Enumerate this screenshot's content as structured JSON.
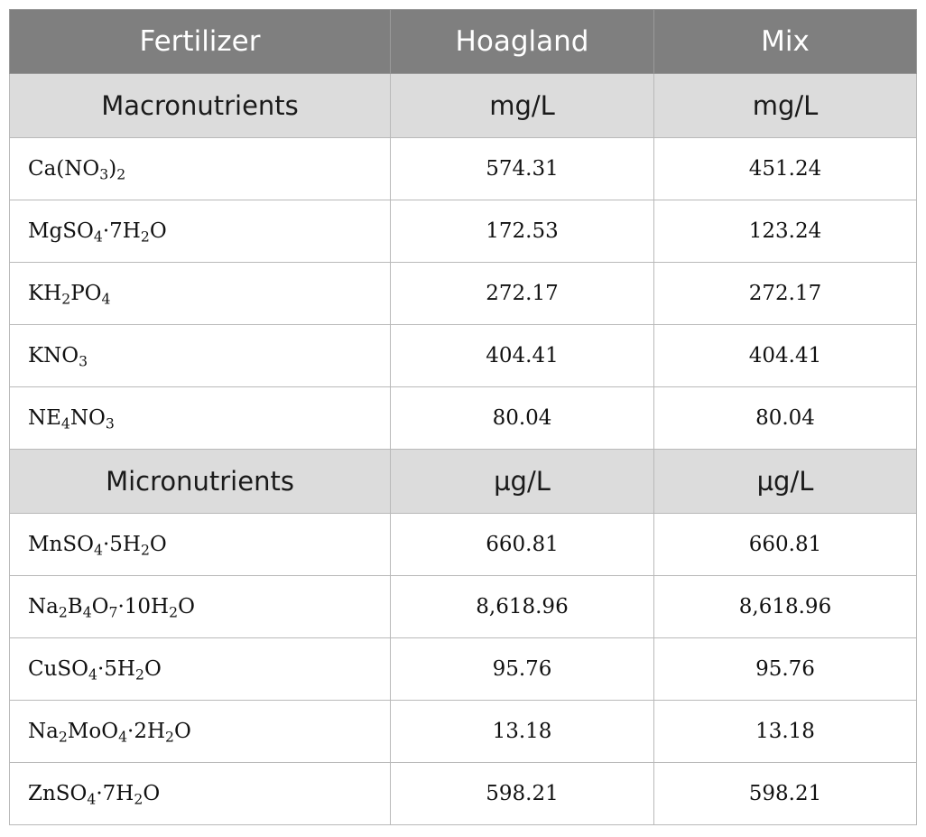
{
  "header": {
    "col1": "Fertilizer",
    "col2": "Hoagland",
    "col3": "Mix"
  },
  "sections": [
    {
      "title": "Macronutrients",
      "unit_hoagland": "mg/L",
      "unit_mix": "mg/L",
      "rows": [
        {
          "parts": [
            "Ca(NO",
            {
              "s": "3"
            },
            ")",
            {
              "s": "2"
            }
          ],
          "hoagland": "574.31",
          "mix": "451.24"
        },
        {
          "parts": [
            "MgSO",
            {
              "s": "4"
            },
            "·7H",
            {
              "s": "2"
            },
            "O"
          ],
          "hoagland": "172.53",
          "mix": "123.24"
        },
        {
          "parts": [
            "KH",
            {
              "s": "2"
            },
            "PO",
            {
              "s": "4"
            }
          ],
          "hoagland": "272.17",
          "mix": "272.17"
        },
        {
          "parts": [
            "KNO",
            {
              "s": "3"
            }
          ],
          "hoagland": "404.41",
          "mix": "404.41"
        },
        {
          "parts": [
            "NE",
            {
              "s": "4"
            },
            "NO",
            {
              "s": "3"
            }
          ],
          "hoagland": "80.04",
          "mix": "80.04"
        }
      ]
    },
    {
      "title": "Micronutrients",
      "unit_hoagland": "µg/L",
      "unit_mix": "µg/L",
      "rows": [
        {
          "parts": [
            "MnSO",
            {
              "s": "4"
            },
            "·5H",
            {
              "s": "2"
            },
            "O"
          ],
          "hoagland": "660.81",
          "mix": "660.81"
        },
        {
          "parts": [
            "Na",
            {
              "s": "2"
            },
            "B",
            {
              "s": "4"
            },
            "O",
            {
              "s": "7"
            },
            "·10H",
            {
              "s": "2"
            },
            "O"
          ],
          "hoagland": "8,618.96",
          "mix": "8,618.96"
        },
        {
          "parts": [
            "CuSO",
            {
              "s": "4"
            },
            "·5H",
            {
              "s": "2"
            },
            "O"
          ],
          "hoagland": "95.76",
          "mix": "95.76"
        },
        {
          "parts": [
            "Na",
            {
              "s": "2"
            },
            "MoO",
            {
              "s": "4"
            },
            "·2H",
            {
              "s": "2"
            },
            "O"
          ],
          "hoagland": "13.18",
          "mix": "13.18"
        },
        {
          "parts": [
            "ZnSO",
            {
              "s": "4"
            },
            "·7H",
            {
              "s": "2"
            },
            "O"
          ],
          "hoagland": "598.21",
          "mix": "598.21"
        }
      ]
    }
  ]
}
